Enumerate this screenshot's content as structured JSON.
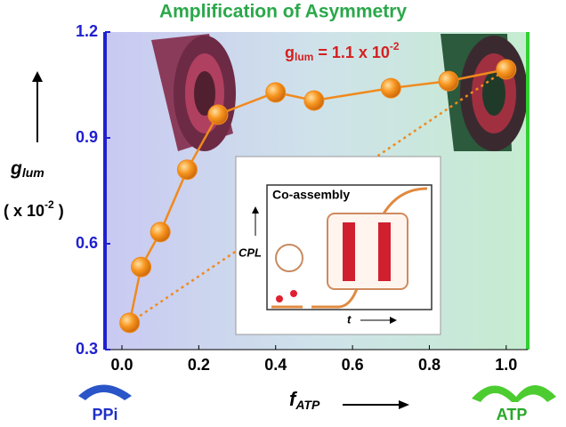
{
  "chart_data": {
    "type": "line",
    "title": "Amplification of Asymmetry",
    "annotation": {
      "main": "g",
      "sub": "lum",
      "rest": " = 1.1 x 10",
      "sup": "-2"
    },
    "y_label": {
      "main": "g",
      "sub": "lum",
      "unit": "( x 10",
      "unit_sup": "-2",
      "unit_end": " )"
    },
    "x_label": {
      "main": "f",
      "sub": "ATP"
    },
    "left_label": "PPi",
    "right_label": "ATP",
    "inset": {
      "title": "Co-assembly",
      "y_label": "CPL",
      "x_label": "t"
    },
    "x": [
      0.02,
      0.05,
      0.1,
      0.17,
      0.25,
      0.4,
      0.5,
      0.7,
      0.85,
      1.0
    ],
    "series": [
      {
        "name": "glum",
        "color": "#f08a1c",
        "values": [
          0.376,
          0.534,
          0.633,
          0.81,
          0.966,
          1.029,
          1.006,
          1.041,
          1.061,
          1.094
        ]
      }
    ],
    "xlim": [
      -0.044,
      1.056
    ],
    "ylim": [
      0.3,
      1.2
    ],
    "xticks": [
      {
        "value": 0,
        "label": "0.0"
      },
      0.2,
      0.4,
      0.6,
      0.8,
      {
        "value": 1,
        "label": "1.0"
      }
    ],
    "yticks": [
      0.3,
      0.6,
      0.9,
      1.2
    ]
  }
}
